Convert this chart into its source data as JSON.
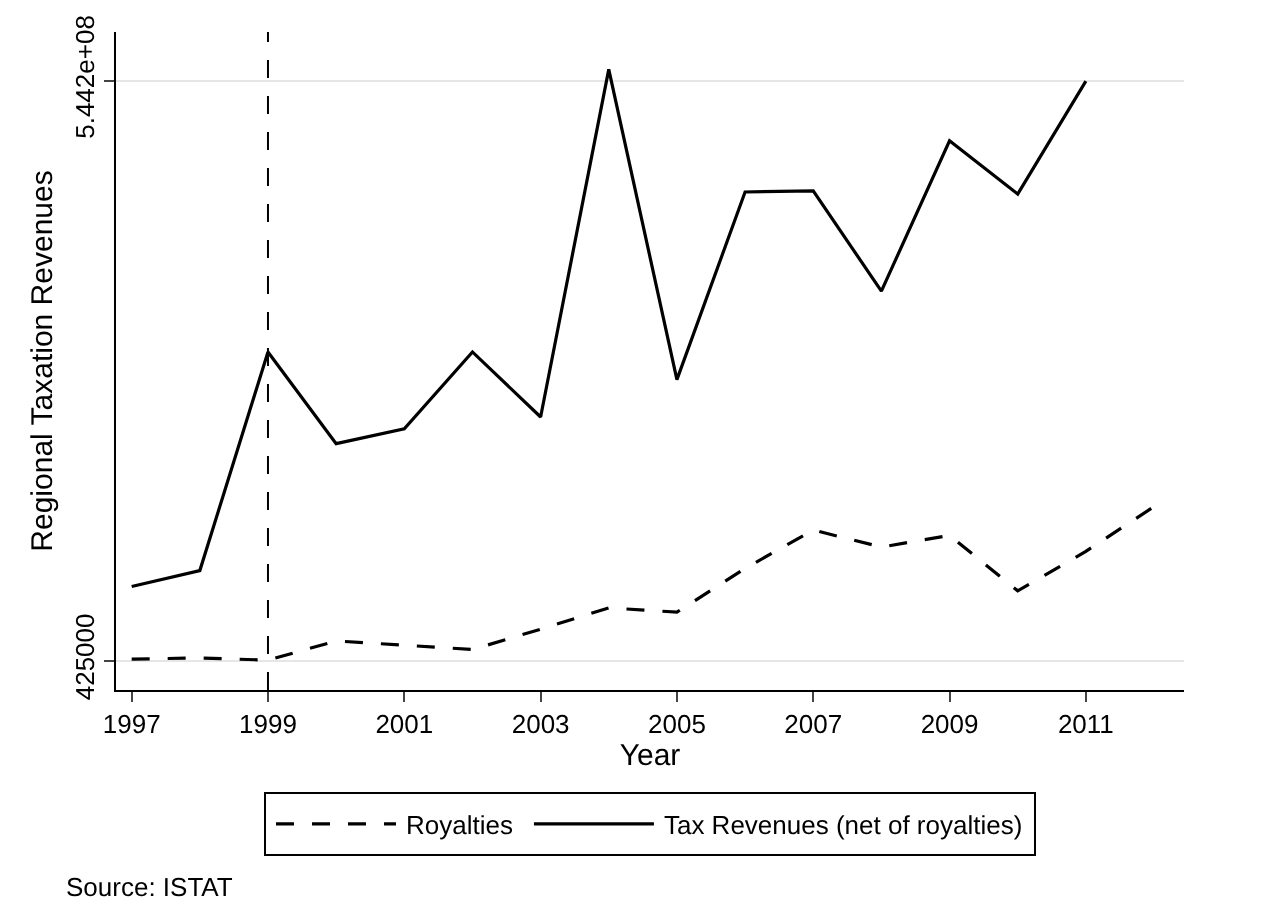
{
  "chart_data": {
    "type": "line",
    "xlabel": "Year",
    "ylabel": "Regional Taxation Revenues",
    "x": [
      1997,
      1998,
      1999,
      2000,
      2001,
      2002,
      2003,
      2004,
      2005,
      2006,
      2007,
      2008,
      2009,
      2010,
      2011,
      2012
    ],
    "series": [
      {
        "name": "Royalties",
        "color": "#000000",
        "line_style": "dashed",
        "values": [
          2000000,
          3000000,
          1000000,
          19000000,
          15000000,
          11000000,
          30000000,
          50000000,
          46000000,
          87000000,
          123000000,
          107000000,
          118000000,
          66000000,
          103000000,
          145000000
        ]
      },
      {
        "name": "Tax Revenues (net of royalties)",
        "color": "#000000",
        "line_style": "solid",
        "values": [
          70000000,
          85000000,
          290000000,
          204000000,
          218000000,
          290000000,
          229000000,
          555000000,
          264000000,
          440000000,
          441000000,
          347000000,
          488000000,
          438000000,
          544000000,
          null
        ]
      }
    ],
    "xlim": [
      1996.77,
      2012.44
    ],
    "xticks": [
      1997,
      1999,
      2001,
      2003,
      2005,
      2007,
      2009,
      2011
    ],
    "ylim": [
      -27000000,
      590000000
    ],
    "yticks": [
      425000,
      {
        "value": 544200000,
        "label": "5.442e+08"
      }
    ],
    "ref_lines": [
      {
        "axis": "x",
        "value": 1999,
        "line_style": "dashed",
        "color": "#000000"
      }
    ],
    "grid": "y",
    "legend": "bottom",
    "marker": "none",
    "annotations": [
      "Source: ISTAT"
    ]
  }
}
